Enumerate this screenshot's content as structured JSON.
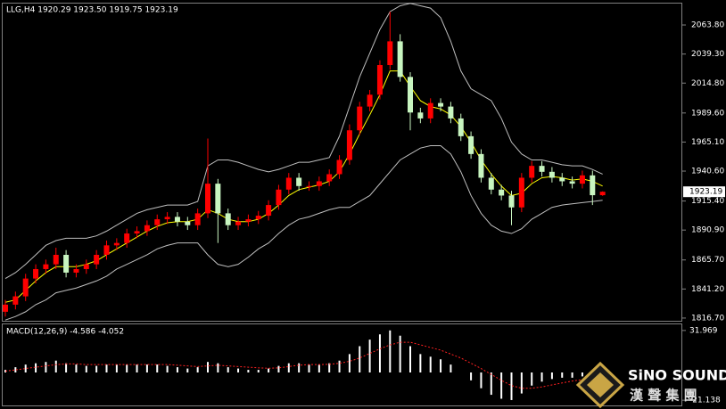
{
  "chart_data": {
    "type": "candlestick",
    "title": "LLG,H4  1920.29 1923.50 1919.75 1923.19",
    "up_color": "#ff0000",
    "down_color": "#c8f5c0",
    "open": [
      1822,
      1828,
      1835,
      1850,
      1858,
      1862,
      1870,
      1855,
      1858,
      1862,
      1870,
      1878,
      1880,
      1888,
      1890,
      1895,
      1900,
      1902,
      1898,
      1895,
      1905,
      1930,
      1905,
      1895,
      1898,
      1900,
      1903,
      1912,
      1925,
      1935,
      1928,
      1928,
      1932,
      1938,
      1950,
      1975,
      1995,
      2005,
      2030,
      2050,
      2020,
      1990,
      1985,
      1998,
      1995,
      1985,
      1970,
      1955,
      1935,
      1925,
      1920,
      1910,
      1935,
      1945,
      1940,
      1935,
      1932,
      1930,
      1937,
      1920.29
    ],
    "high": [
      1832,
      1839,
      1854,
      1862,
      1866,
      1876,
      1874,
      1862,
      1866,
      1874,
      1882,
      1884,
      1892,
      1894,
      1899,
      1904,
      1906,
      1906,
      1902,
      1909,
      1968,
      1934,
      1909,
      1902,
      1904,
      1907,
      1916,
      1929,
      1939,
      1939,
      1932,
      1936,
      1942,
      1954,
      1980,
      1999,
      2009,
      2034,
      2075,
      2056,
      2024,
      1994,
      2002,
      2002,
      1999,
      1989,
      1974,
      1959,
      1939,
      1929,
      1924,
      1939,
      1949,
      1949,
      1944,
      1939,
      1936,
      1941,
      1941,
      1923.5
    ],
    "low": [
      1818,
      1824,
      1831,
      1846,
      1854,
      1858,
      1851,
      1851,
      1854,
      1858,
      1866,
      1874,
      1876,
      1884,
      1886,
      1891,
      1896,
      1894,
      1891,
      1891,
      1901,
      1880,
      1891,
      1891,
      1894,
      1896,
      1899,
      1908,
      1921,
      1924,
      1924,
      1924,
      1928,
      1934,
      1946,
      1971,
      1991,
      2001,
      2026,
      2016,
      1975,
      1981,
      1981,
      1991,
      1981,
      1966,
      1951,
      1931,
      1921,
      1916,
      1895,
      1906,
      1931,
      1936,
      1931,
      1928,
      1926,
      1926,
      1912,
      1919.75
    ],
    "close": [
      1828,
      1835,
      1850,
      1858,
      1862,
      1870,
      1855,
      1858,
      1862,
      1870,
      1878,
      1880,
      1888,
      1890,
      1895,
      1900,
      1902,
      1898,
      1895,
      1905,
      1930,
      1905,
      1895,
      1898,
      1900,
      1903,
      1912,
      1925,
      1935,
      1928,
      1928,
      1932,
      1938,
      1950,
      1975,
      1995,
      2005,
      2030,
      2050,
      2020,
      1990,
      1985,
      1998,
      1995,
      1985,
      1970,
      1955,
      1935,
      1925,
      1920,
      1910,
      1935,
      1945,
      1940,
      1935,
      1932,
      1930,
      1937,
      1920.29,
      1923.19
    ],
    "bands": {
      "color": "#bfbfbf",
      "upper": [
        1850,
        1855,
        1862,
        1870,
        1878,
        1882,
        1884,
        1884,
        1884,
        1886,
        1890,
        1895,
        1900,
        1905,
        1908,
        1910,
        1912,
        1912,
        1912,
        1915,
        1945,
        1950,
        1950,
        1948,
        1945,
        1942,
        1940,
        1942,
        1945,
        1948,
        1948,
        1950,
        1952,
        1970,
        1995,
        2020,
        2040,
        2060,
        2075,
        2080,
        2082,
        2080,
        2078,
        2070,
        2050,
        2025,
        2010,
        2005,
        2000,
        1985,
        1965,
        1955,
        1950,
        1950,
        1948,
        1946,
        1945,
        1945,
        1942,
        1938
      ],
      "lower": [
        1815,
        1818,
        1822,
        1828,
        1832,
        1838,
        1840,
        1842,
        1845,
        1848,
        1852,
        1858,
        1862,
        1866,
        1870,
        1875,
        1878,
        1880,
        1880,
        1880,
        1870,
        1862,
        1860,
        1862,
        1868,
        1875,
        1880,
        1888,
        1895,
        1900,
        1902,
        1905,
        1908,
        1910,
        1910,
        1915,
        1920,
        1930,
        1940,
        1950,
        1955,
        1960,
        1962,
        1962,
        1955,
        1940,
        1920,
        1905,
        1895,
        1890,
        1888,
        1892,
        1900,
        1905,
        1910,
        1912,
        1913,
        1914,
        1915,
        1916
      ]
    },
    "ma": {
      "color": "#ffff00",
      "values": [
        1830,
        1832,
        1840,
        1848,
        1855,
        1860,
        1860,
        1860,
        1862,
        1865,
        1870,
        1875,
        1880,
        1885,
        1890,
        1894,
        1897,
        1898,
        1898,
        1900,
        1908,
        1905,
        1900,
        1898,
        1898,
        1900,
        1905,
        1912,
        1920,
        1925,
        1927,
        1929,
        1932,
        1940,
        1955,
        1972,
        1988,
        2005,
        2025,
        2025,
        2012,
        2000,
        1995,
        1993,
        1988,
        1978,
        1965,
        1950,
        1938,
        1928,
        1920,
        1922,
        1930,
        1935,
        1936,
        1935,
        1933,
        1934,
        1932,
        1928
      ]
    },
    "ylim": [
      1814.4,
      2081.1
    ],
    "yticks": [
      {
        "value": 2063.8,
        "label": "2063.80"
      },
      {
        "value": 2039.3,
        "label": "2039.30"
      },
      {
        "value": 2014.8,
        "label": "2014.80"
      },
      {
        "value": 1989.6,
        "label": "1989.60"
      },
      {
        "value": 1965.1,
        "label": "1965.10"
      },
      {
        "value": 1940.6,
        "label": "1940.60"
      },
      {
        "value": 1915.4,
        "label": "1915.40"
      },
      {
        "value": 1890.9,
        "label": "1890.90"
      },
      {
        "value": 1865.7,
        "label": "1865.70"
      },
      {
        "value": 1841.2,
        "label": "1841.20"
      },
      {
        "value": 1816.7,
        "label": "1816.70"
      }
    ],
    "current_price": 1923.19,
    "macd": {
      "label": "MACD(12,26,9) -4.586 -4.052",
      "hist_color": "#ffffff",
      "signal_color": "#ff2020",
      "histogram": [
        2,
        4,
        6,
        7,
        8,
        9,
        7,
        6,
        5,
        5,
        6,
        6,
        6,
        6,
        6,
        6,
        5,
        4,
        3,
        4,
        8,
        7,
        4,
        3,
        2,
        2,
        3,
        5,
        7,
        7,
        6,
        6,
        7,
        9,
        14,
        20,
        25,
        29,
        32,
        28,
        20,
        14,
        12,
        10,
        6,
        0,
        -6,
        -12,
        -17,
        -20,
        -21,
        -16,
        -10,
        -7,
        -5,
        -4,
        -4,
        -3,
        -4,
        -4.586
      ],
      "signal": [
        1,
        2,
        3,
        4,
        5,
        6,
        6.5,
        6.5,
        6,
        6,
        6,
        6,
        6,
        6,
        6,
        6,
        6,
        5.5,
        5,
        4.5,
        5,
        5.5,
        5,
        4.5,
        4,
        3.5,
        3.2,
        3.5,
        4.5,
        5.5,
        6,
        6,
        6.2,
        7,
        8.5,
        11,
        14.5,
        18,
        21,
        23,
        23,
        21,
        19,
        17,
        14,
        11,
        7,
        3,
        -1.5,
        -6,
        -10,
        -12,
        -12,
        -11,
        -9.5,
        -8,
        -6.5,
        -5.5,
        -4.5,
        -4.052
      ],
      "ylim": [
        -25.1,
        35.95
      ],
      "yticks": [
        31.969,
        -21.138
      ]
    },
    "watermark": {
      "name": "SiNO SOUND",
      "subtitle": "漢 聲 集 團"
    }
  }
}
